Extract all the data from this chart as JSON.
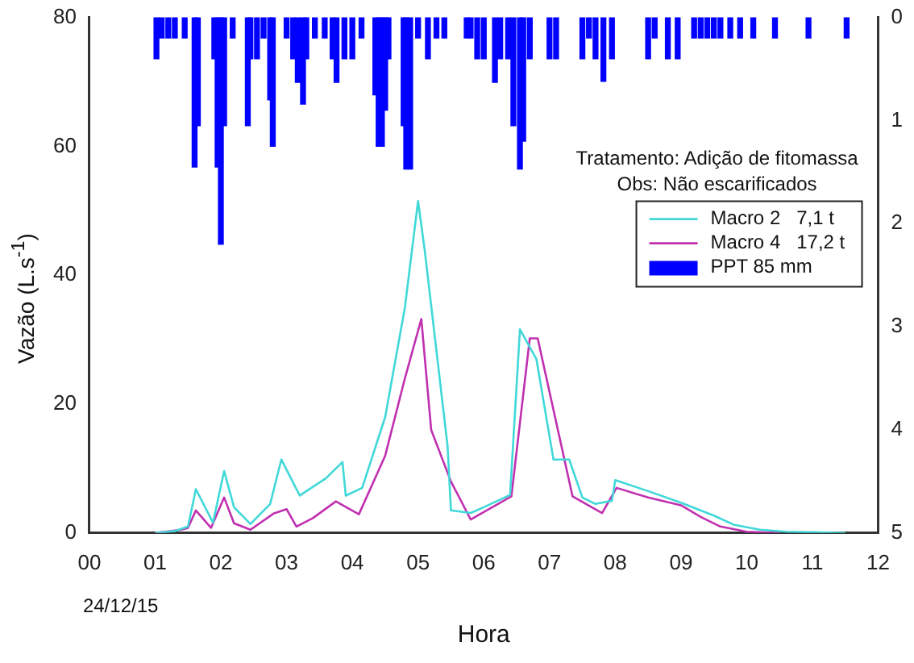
{
  "chart_data": {
    "type": "line",
    "xlabel": "Hora",
    "ylabel": "Vazão (L.s$^{-1}$)",
    "annotations": [
      "24/12/15",
      "Tratamento: Adição de fitomassa",
      "Obs: Não escarificados"
    ],
    "xlim": [
      0,
      12
    ],
    "xticks": [
      {
        "value": 0,
        "label": "00"
      },
      {
        "value": 1,
        "label": "01"
      },
      {
        "value": 2,
        "label": "02"
      },
      {
        "value": 3,
        "label": "03"
      },
      {
        "value": 4,
        "label": "04"
      },
      {
        "value": 5,
        "label": "05"
      },
      {
        "value": 6,
        "label": "06"
      },
      {
        "value": 7,
        "label": "07"
      },
      {
        "value": 8,
        "label": "08"
      },
      {
        "value": 9,
        "label": "09"
      },
      {
        "value": 10,
        "label": "10"
      },
      {
        "value": 11,
        "label": "11"
      },
      {
        "value": 12,
        "label": "12"
      }
    ],
    "ylim": [
      0,
      80
    ],
    "yticks": [
      0,
      20,
      40,
      60,
      80
    ],
    "y2lim": [
      5,
      0
    ],
    "y2ticks": [
      0,
      1,
      2,
      3,
      4,
      5
    ],
    "grid": false,
    "legend": "top right",
    "marker": "none",
    "line_style": "solid",
    "series": [
      {
        "name": "Macro 2   7,1 t",
        "color": "#40d8d8",
        "x": [
          1.0,
          1.3,
          1.5,
          1.62,
          1.88,
          2.05,
          2.2,
          2.45,
          2.75,
          2.92,
          3.2,
          3.6,
          3.85,
          3.9,
          4.15,
          4.5,
          4.8,
          5.0,
          5.1,
          5.45,
          5.5,
          5.8,
          6.0,
          6.4,
          6.55,
          6.8,
          7.06,
          7.3,
          7.5,
          7.7,
          7.95,
          8.0,
          8.5,
          9.0,
          9.5,
          9.8,
          10.2,
          10.6,
          11.5
        ],
        "values": [
          0,
          0.3,
          1,
          6.8,
          1.6,
          9.6,
          4,
          1.4,
          4.5,
          11.4,
          5.8,
          8.5,
          11,
          5.8,
          7,
          18,
          35,
          51.5,
          44,
          13.4,
          3.5,
          3.1,
          4,
          5.9,
          31.6,
          27,
          11.4,
          11.4,
          5.5,
          4.5,
          5,
          8.2,
          6.5,
          4.7,
          2.7,
          1.3,
          0.5,
          0.2,
          0
        ]
      },
      {
        "name": "Macro 4   17,2 t",
        "color": "#c030b0",
        "x": [
          1.0,
          1.4,
          1.5,
          1.62,
          1.85,
          2.05,
          2.2,
          2.45,
          2.8,
          3.0,
          3.15,
          3.4,
          3.75,
          4.1,
          4.5,
          4.8,
          5.05,
          5.2,
          5.5,
          5.8,
          6.42,
          6.7,
          6.82,
          7.35,
          7.8,
          8.02,
          8.5,
          9.0,
          9.3,
          9.6,
          10.0,
          10.5
        ],
        "values": [
          0,
          0.5,
          0.8,
          3.5,
          0.8,
          5.5,
          1.5,
          0.5,
          3,
          3.7,
          1,
          2.3,
          4.9,
          2.9,
          12,
          24,
          33.2,
          16,
          8,
          2.1,
          5.7,
          30.2,
          30.2,
          5.7,
          3.1,
          7,
          5.5,
          4.3,
          2.5,
          1,
          0.2,
          0
        ]
      },
      {
        "name": "PPT 85 mm",
        "type": "bar",
        "axis": "y2",
        "color": "#0000ff",
        "x": [
          1.02,
          1.1,
          1.2,
          1.3,
          1.45,
          1.6,
          1.65,
          1.9,
          1.95,
          2.0,
          2.05,
          2.18,
          2.41,
          2.45,
          2.55,
          2.65,
          2.75,
          2.79,
          3.0,
          3.1,
          3.17,
          3.25,
          3.3,
          3.43,
          3.58,
          3.7,
          3.76,
          3.88,
          4.0,
          4.14,
          4.35,
          4.4,
          4.45,
          4.5,
          4.55,
          4.78,
          4.82,
          4.88,
          5.0,
          5.15,
          5.28,
          5.4,
          5.74,
          5.8,
          5.9,
          6.0,
          6.17,
          6.25,
          6.37,
          6.45,
          6.55,
          6.6,
          6.7,
          7.0,
          7.1,
          7.5,
          7.6,
          7.7,
          7.82,
          7.95,
          8.5,
          8.6,
          8.8,
          8.95,
          9.2,
          9.3,
          9.4,
          9.5,
          9.6,
          9.75,
          9.9,
          10.1,
          10.43,
          10.94,
          11.52
        ],
        "values": [
          0.4,
          0.2,
          0.2,
          0.2,
          0.2,
          1.45,
          1.05,
          0.4,
          1.45,
          2.2,
          1.05,
          0.2,
          1.05,
          0.4,
          0.4,
          0.2,
          0.8,
          1.25,
          0.2,
          0.4,
          0.63,
          0.84,
          0.4,
          0.2,
          0.2,
          0.4,
          0.63,
          0.4,
          0.4,
          0.2,
          0.75,
          1.25,
          1.25,
          0.9,
          0.4,
          1.05,
          1.47,
          1.47,
          0.2,
          0.4,
          0.2,
          0.2,
          0.2,
          0.2,
          0.4,
          0.4,
          0.63,
          0.4,
          0.4,
          1.05,
          1.47,
          1.2,
          0.4,
          0.4,
          0.4,
          0.4,
          0.2,
          0.4,
          0.62,
          0.4,
          0.4,
          0.2,
          0.4,
          0.4,
          0.2,
          0.2,
          0.2,
          0.2,
          0.2,
          0.2,
          0.2,
          0.2,
          0.2,
          0.2,
          0.2
        ]
      }
    ]
  }
}
